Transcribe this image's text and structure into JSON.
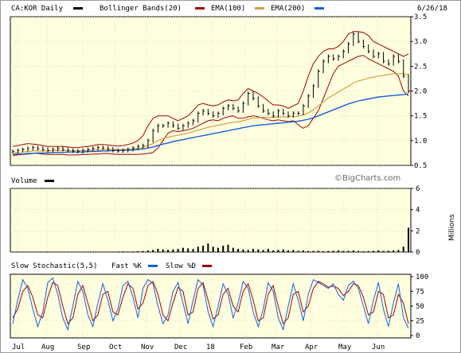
{
  "header": {
    "symbol_label": "CA:KOR Daily",
    "bb_label": "Bollinger Bands(20)",
    "ema100_label": "EMA(100)",
    "ema200_label": "EMA(200)",
    "date": "6/26/18"
  },
  "volume_panel": {
    "title": "Volume",
    "unit": "Millions",
    "watermark": "©BigCharts.com"
  },
  "stoch_panel": {
    "title": "Slow Stochastic(5,5)",
    "fast_label": "Fast %K",
    "slow_label": "Slow %D"
  },
  "colors": {
    "background": "#ffffe0",
    "price": "#000000",
    "bollinger": "#a00000",
    "ema100": "#d4a040",
    "ema200": "#1560d8",
    "fast_k": "#1560d8",
    "slow_d": "#a00000"
  },
  "x_axis": {
    "labels": [
      "Jul",
      "Aug",
      "Sep",
      "Oct",
      "Nov",
      "Dec",
      "18",
      "Feb",
      "Mar",
      "Apr",
      "May",
      "Jun"
    ]
  },
  "chart_data": [
    {
      "type": "line",
      "name": "price",
      "yticks": [
        "3.5",
        "3.0",
        "2.5",
        "2.0",
        "1.5",
        "1.0",
        "0.5"
      ],
      "ylim": [
        0.5,
        3.5
      ],
      "close": [
        0.78,
        0.8,
        0.82,
        0.84,
        0.86,
        0.84,
        0.82,
        0.8,
        0.82,
        0.84,
        0.82,
        0.8,
        0.79,
        0.78,
        0.8,
        0.82,
        0.84,
        0.86,
        0.85,
        0.83,
        0.8,
        0.79,
        0.8,
        0.82,
        0.85,
        0.88,
        0.9,
        1.0,
        1.2,
        1.3,
        1.3,
        1.35,
        1.3,
        1.25,
        1.3,
        1.35,
        1.4,
        1.55,
        1.6,
        1.55,
        1.5,
        1.55,
        1.65,
        1.7,
        1.65,
        1.6,
        1.75,
        1.95,
        1.85,
        1.7,
        1.6,
        1.55,
        1.5,
        1.6,
        1.55,
        1.5,
        1.55,
        1.55,
        1.7,
        1.9,
        2.1,
        2.4,
        2.6,
        2.7,
        2.65,
        2.7,
        2.8,
        2.95,
        3.15,
        3.0,
        2.9,
        2.8,
        2.7,
        2.75,
        2.6,
        2.55,
        2.7,
        2.6,
        2.3,
        2.0
      ],
      "bb_upper": [
        0.88,
        0.9,
        0.92,
        0.94,
        0.93,
        0.92,
        0.9,
        0.88,
        0.88,
        0.88,
        0.88,
        0.87,
        0.86,
        0.86,
        0.87,
        0.88,
        0.9,
        0.92,
        0.92,
        0.91,
        0.9,
        0.89,
        0.9,
        0.92,
        0.95,
        1.0,
        1.1,
        1.3,
        1.45,
        1.5,
        1.5,
        1.5,
        1.45,
        1.4,
        1.45,
        1.5,
        1.6,
        1.72,
        1.75,
        1.72,
        1.7,
        1.72,
        1.78,
        1.82,
        1.8,
        1.82,
        1.95,
        2.05,
        2.0,
        1.95,
        1.88,
        1.8,
        1.72,
        1.72,
        1.7,
        1.65,
        1.7,
        1.75,
        2.0,
        2.3,
        2.55,
        2.7,
        2.8,
        2.85,
        2.85,
        2.9,
        3.0,
        3.15,
        3.2,
        3.2,
        3.18,
        3.12,
        3.0,
        2.95,
        2.9,
        2.85,
        2.8,
        2.75,
        2.7,
        2.75
      ],
      "bb_lower": [
        0.7,
        0.71,
        0.72,
        0.73,
        0.74,
        0.74,
        0.73,
        0.72,
        0.72,
        0.72,
        0.72,
        0.71,
        0.71,
        0.71,
        0.72,
        0.72,
        0.73,
        0.73,
        0.74,
        0.74,
        0.73,
        0.72,
        0.72,
        0.72,
        0.72,
        0.72,
        0.73,
        0.74,
        0.76,
        0.85,
        1.0,
        1.15,
        1.2,
        1.18,
        1.2,
        1.22,
        1.25,
        1.3,
        1.35,
        1.4,
        1.42,
        1.4,
        1.45,
        1.48,
        1.5,
        1.45,
        1.45,
        1.48,
        1.5,
        1.48,
        1.45,
        1.42,
        1.4,
        1.42,
        1.4,
        1.38,
        1.4,
        1.32,
        1.25,
        1.3,
        1.45,
        1.6,
        1.85,
        2.1,
        2.35,
        2.5,
        2.55,
        2.6,
        2.65,
        2.7,
        2.72,
        2.65,
        2.6,
        2.55,
        2.5,
        2.45,
        2.4,
        2.3,
        2.0,
        1.9
      ],
      "ema100": [
        0.75,
        0.76,
        0.77,
        0.78,
        0.79,
        0.79,
        0.79,
        0.79,
        0.8,
        0.8,
        0.8,
        0.8,
        0.8,
        0.8,
        0.8,
        0.8,
        0.81,
        0.81,
        0.82,
        0.82,
        0.82,
        0.82,
        0.82,
        0.82,
        0.83,
        0.84,
        0.86,
        0.9,
        0.94,
        1.0,
        1.04,
        1.07,
        1.09,
        1.11,
        1.13,
        1.15,
        1.18,
        1.21,
        1.24,
        1.27,
        1.29,
        1.31,
        1.33,
        1.35,
        1.37,
        1.38,
        1.4,
        1.43,
        1.45,
        1.46,
        1.47,
        1.47,
        1.47,
        1.48,
        1.48,
        1.48,
        1.49,
        1.49,
        1.52,
        1.56,
        1.62,
        1.7,
        1.78,
        1.86,
        1.92,
        1.98,
        2.04,
        2.1,
        2.16,
        2.2,
        2.23,
        2.26,
        2.28,
        2.3,
        2.32,
        2.33,
        2.35,
        2.35,
        2.35,
        2.33
      ],
      "ema200": [
        0.72,
        0.73,
        0.73,
        0.74,
        0.74,
        0.75,
        0.75,
        0.75,
        0.76,
        0.76,
        0.76,
        0.77,
        0.77,
        0.77,
        0.77,
        0.78,
        0.78,
        0.78,
        0.79,
        0.79,
        0.8,
        0.8,
        0.8,
        0.81,
        0.81,
        0.82,
        0.83,
        0.85,
        0.87,
        0.9,
        0.93,
        0.95,
        0.98,
        1.0,
        1.02,
        1.04,
        1.06,
        1.08,
        1.1,
        1.12,
        1.14,
        1.16,
        1.18,
        1.2,
        1.22,
        1.24,
        1.26,
        1.28,
        1.3,
        1.31,
        1.32,
        1.33,
        1.34,
        1.35,
        1.36,
        1.37,
        1.38,
        1.39,
        1.41,
        1.43,
        1.46,
        1.5,
        1.54,
        1.58,
        1.62,
        1.66,
        1.7,
        1.74,
        1.77,
        1.8,
        1.82,
        1.84,
        1.86,
        1.88,
        1.89,
        1.9,
        1.91,
        1.92,
        1.93,
        1.94
      ]
    },
    {
      "type": "bar",
      "name": "volume",
      "yticks": [
        "6",
        "4",
        "2",
        "0"
      ],
      "ylim": [
        0,
        6
      ],
      "values": [
        0.02,
        0.03,
        0.02,
        0.04,
        0.03,
        0.02,
        0.03,
        0.05,
        0.04,
        0.03,
        0.02,
        0.03,
        0.02,
        0.04,
        0.03,
        0.02,
        0.05,
        0.04,
        0.03,
        0.02,
        0.03,
        0.05,
        0.06,
        0.04,
        0.05,
        0.08,
        0.1,
        0.15,
        0.2,
        0.3,
        0.25,
        0.2,
        0.25,
        0.3,
        0.4,
        0.35,
        0.3,
        0.5,
        0.6,
        0.8,
        0.5,
        0.4,
        0.6,
        0.7,
        0.4,
        0.3,
        0.25,
        0.2,
        0.3,
        0.25,
        0.2,
        0.3,
        0.15,
        0.2,
        0.25,
        0.15,
        0.2,
        0.12,
        0.15,
        0.1,
        0.1,
        0.12,
        0.08,
        0.1,
        0.12,
        0.15,
        0.1,
        0.12,
        0.15,
        0.1,
        0.08,
        0.1,
        0.12,
        0.15,
        0.1,
        0.12,
        0.15,
        0.2,
        0.5,
        2.3
      ]
    },
    {
      "type": "line",
      "name": "stochastic",
      "yticks": [
        "100",
        "75",
        "50",
        "25",
        "0"
      ],
      "ylim": [
        0,
        100
      ],
      "fast_k": [
        20,
        60,
        95,
        80,
        45,
        15,
        40,
        90,
        98,
        70,
        30,
        10,
        50,
        92,
        75,
        35,
        15,
        55,
        88,
        60,
        25,
        45,
        85,
        92,
        65,
        30,
        80,
        95,
        88,
        50,
        20,
        35,
        75,
        90,
        55,
        20,
        60,
        95,
        85,
        40,
        15,
        50,
        88,
        70,
        30,
        55,
        92,
        80,
        40,
        15,
        45,
        90,
        75,
        30,
        10,
        50,
        88,
        60,
        25,
        70,
        95,
        90,
        85,
        80,
        88,
        70,
        60,
        85,
        92,
        80,
        50,
        20,
        60,
        90,
        45,
        15,
        55,
        88,
        30,
        12
      ],
      "slow_d": [
        30,
        45,
        75,
        85,
        65,
        35,
        30,
        65,
        90,
        85,
        50,
        20,
        30,
        70,
        85,
        55,
        25,
        35,
        70,
        75,
        40,
        35,
        65,
        88,
        80,
        45,
        55,
        85,
        92,
        70,
        35,
        25,
        55,
        82,
        75,
        35,
        40,
        80,
        90,
        60,
        28,
        35,
        70,
        80,
        50,
        40,
        75,
        88,
        60,
        25,
        30,
        70,
        85,
        50,
        20,
        30,
        70,
        75,
        40,
        50,
        80,
        92,
        88,
        82,
        84,
        80,
        68,
        75,
        88,
        85,
        65,
        35,
        40,
        75,
        70,
        30,
        35,
        70,
        55,
        20
      ]
    }
  ]
}
